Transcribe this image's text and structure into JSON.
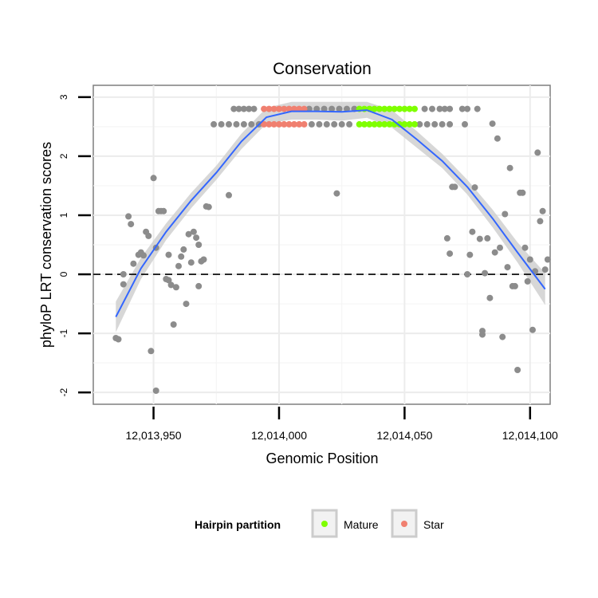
{
  "chart_data": {
    "type": "scatter",
    "title": "Conservation",
    "xlabel": "Genomic Position",
    "ylabel": "phyloP LRT conservation scores",
    "xlim": [
      12013926,
      12014108
    ],
    "ylim": [
      -2.2,
      3.2
    ],
    "x_ticks": [
      12013950,
      12014000,
      12014050,
      12014100
    ],
    "x_tick_labels": [
      "12,013,950",
      "12,014,000",
      "12,014,050",
      "12,014,100"
    ],
    "y_ticks": [
      -2,
      -1,
      0,
      1,
      2,
      3
    ],
    "y_tick_labels": [
      "-2",
      "-1",
      "0",
      "1",
      "2",
      "3"
    ],
    "reference_line": {
      "y": 0,
      "style": "dashed"
    },
    "legend": {
      "title": "Hairpin partition",
      "placement": "bottom",
      "items": [
        {
          "label": "Mature",
          "color": "#7fff00"
        },
        {
          "label": "Star",
          "color": "#f08070"
        }
      ]
    },
    "colors": {
      "other": "#8c8c8c",
      "Mature": "#7fff00",
      "Star": "#f08070",
      "smooth_line": "#3366ff",
      "confidence_band": "#d0d0d0"
    },
    "series": [
      {
        "name": "Other",
        "points": [
          [
            12013935,
            -1.08
          ],
          [
            12013936,
            -1.1
          ],
          [
            12013938,
            -0.17
          ],
          [
            12013938,
            0.0
          ],
          [
            12013940,
            0.98
          ],
          [
            12013941,
            0.85
          ],
          [
            12013942,
            0.18
          ],
          [
            12013944,
            0.33
          ],
          [
            12013945,
            0.37
          ],
          [
            12013946,
            0.32
          ],
          [
            12013947,
            0.72
          ],
          [
            12013948,
            0.65
          ],
          [
            12013949,
            -1.3
          ],
          [
            12013950,
            1.63
          ],
          [
            12013951,
            -1.97
          ],
          [
            12013951,
            0.45
          ],
          [
            12013952,
            1.07
          ],
          [
            12013953,
            1.07
          ],
          [
            12013954,
            1.07
          ],
          [
            12013955,
            -0.08
          ],
          [
            12013956,
            -0.1
          ],
          [
            12013956,
            0.33
          ],
          [
            12013957,
            -0.18
          ],
          [
            12013958,
            -0.85
          ],
          [
            12013959,
            -0.22
          ],
          [
            12013960,
            0.14
          ],
          [
            12013961,
            0.3
          ],
          [
            12013962,
            0.42
          ],
          [
            12013963,
            -0.5
          ],
          [
            12013964,
            0.68
          ],
          [
            12013965,
            0.2
          ],
          [
            12013966,
            0.72
          ],
          [
            12013967,
            0.62
          ],
          [
            12013968,
            0.5
          ],
          [
            12013968,
            -0.2
          ],
          [
            12013969,
            0.22
          ],
          [
            12013970,
            0.25
          ],
          [
            12013971,
            1.15
          ],
          [
            12013972,
            1.14
          ],
          [
            12013980,
            1.34
          ],
          [
            12014023,
            1.37
          ],
          [
            12014067,
            0.61
          ],
          [
            12014068,
            0.35
          ],
          [
            12014069,
            1.48
          ],
          [
            12014070,
            1.48
          ],
          [
            12014075,
            0.0
          ],
          [
            12014076,
            0.33
          ],
          [
            12014077,
            0.72
          ],
          [
            12014078,
            1.47
          ],
          [
            12014080,
            0.6
          ],
          [
            12014081,
            -0.96
          ],
          [
            12014081,
            -1.02
          ],
          [
            12014082,
            0.02
          ],
          [
            12014083,
            0.61
          ],
          [
            12014084,
            -0.4
          ],
          [
            12014085,
            2.55
          ],
          [
            12014086,
            0.37
          ],
          [
            12014087,
            2.3
          ],
          [
            12014088,
            0.45
          ],
          [
            12014089,
            -1.06
          ],
          [
            12014090,
            1.02
          ],
          [
            12014091,
            0.12
          ],
          [
            12014092,
            1.8
          ],
          [
            12014093,
            -0.2
          ],
          [
            12014094,
            -0.2
          ],
          [
            12014095,
            -1.62
          ],
          [
            12014096,
            1.38
          ],
          [
            12014097,
            1.38
          ],
          [
            12014098,
            0.45
          ],
          [
            12014099,
            -0.12
          ],
          [
            12014100,
            0.25
          ],
          [
            12014101,
            -0.94
          ],
          [
            12014102,
            0.05
          ],
          [
            12014103,
            2.06
          ],
          [
            12014104,
            0.9
          ],
          [
            12014105,
            1.07
          ],
          [
            12014106,
            0.08
          ],
          [
            12014107,
            0.25
          ],
          [
            12013982,
            2.8
          ],
          [
            12013984,
            2.8
          ],
          [
            12013986,
            2.8
          ],
          [
            12013988,
            2.8
          ],
          [
            12013990,
            2.8
          ],
          [
            12014012,
            2.8
          ],
          [
            12014015,
            2.8
          ],
          [
            12014018,
            2.8
          ],
          [
            12014021,
            2.8
          ],
          [
            12014024,
            2.8
          ],
          [
            12014027,
            2.8
          ],
          [
            12014030,
            2.8
          ],
          [
            12014058,
            2.8
          ],
          [
            12014061,
            2.8
          ],
          [
            12014064,
            2.8
          ],
          [
            12014066,
            2.8
          ],
          [
            12014068,
            2.8
          ],
          [
            12014073,
            2.8
          ],
          [
            12014075,
            2.8
          ],
          [
            12014079,
            2.8
          ],
          [
            12013974,
            2.54
          ],
          [
            12013977,
            2.54
          ],
          [
            12013980,
            2.54
          ],
          [
            12013983,
            2.54
          ],
          [
            12013986,
            2.54
          ],
          [
            12013989,
            2.54
          ],
          [
            12013992,
            2.54
          ],
          [
            12014013,
            2.54
          ],
          [
            12014016,
            2.54
          ],
          [
            12014019,
            2.54
          ],
          [
            12014022,
            2.54
          ],
          [
            12014025,
            2.54
          ],
          [
            12014028,
            2.54
          ],
          [
            12014056,
            2.54
          ],
          [
            12014059,
            2.54
          ],
          [
            12014062,
            2.54
          ],
          [
            12014065,
            2.54
          ],
          [
            12014068,
            2.54
          ],
          [
            12014074,
            2.54
          ]
        ]
      },
      {
        "name": "Star",
        "points": [
          [
            12013994,
            2.8
          ],
          [
            12013996,
            2.8
          ],
          [
            12013998,
            2.8
          ],
          [
            12014000,
            2.8
          ],
          [
            12014002,
            2.8
          ],
          [
            12014004,
            2.8
          ],
          [
            12014006,
            2.8
          ],
          [
            12014008,
            2.8
          ],
          [
            12014010,
            2.8
          ],
          [
            12013994,
            2.54
          ],
          [
            12013996,
            2.54
          ],
          [
            12013998,
            2.54
          ],
          [
            12014000,
            2.54
          ],
          [
            12014002,
            2.54
          ],
          [
            12014004,
            2.54
          ],
          [
            12014006,
            2.54
          ],
          [
            12014008,
            2.54
          ],
          [
            12014010,
            2.54
          ]
        ]
      },
      {
        "name": "Mature",
        "points": [
          [
            12014032,
            2.8
          ],
          [
            12014034,
            2.8
          ],
          [
            12014036,
            2.8
          ],
          [
            12014038,
            2.8
          ],
          [
            12014040,
            2.8
          ],
          [
            12014042,
            2.8
          ],
          [
            12014044,
            2.8
          ],
          [
            12014046,
            2.8
          ],
          [
            12014048,
            2.8
          ],
          [
            12014050,
            2.8
          ],
          [
            12014052,
            2.8
          ],
          [
            12014054,
            2.8
          ],
          [
            12014032,
            2.54
          ],
          [
            12014034,
            2.54
          ],
          [
            12014036,
            2.54
          ],
          [
            12014038,
            2.54
          ],
          [
            12014040,
            2.54
          ],
          [
            12014042,
            2.54
          ],
          [
            12014044,
            2.54
          ],
          [
            12014046,
            2.54
          ],
          [
            12014048,
            2.54
          ],
          [
            12014050,
            2.54
          ],
          [
            12014052,
            2.54
          ],
          [
            12014054,
            2.54
          ]
        ]
      }
    ],
    "smooth": {
      "x": [
        12013935,
        12013945,
        12013955,
        12013965,
        12013975,
        12013985,
        12013995,
        12014005,
        12014015,
        12014025,
        12014035,
        12014045,
        12014055,
        12014065,
        12014075,
        12014085,
        12014095,
        12014106
      ],
      "y": [
        -0.72,
        0.1,
        0.72,
        1.25,
        1.72,
        2.25,
        2.66,
        2.76,
        2.76,
        2.75,
        2.78,
        2.62,
        2.28,
        1.92,
        1.48,
        0.95,
        0.37,
        -0.25
      ],
      "lower": [
        -0.98,
        -0.08,
        0.58,
        1.12,
        1.6,
        2.12,
        2.55,
        2.62,
        2.62,
        2.6,
        2.65,
        2.48,
        2.14,
        1.8,
        1.35,
        0.8,
        0.2,
        -0.52
      ],
      "upper": [
        -0.46,
        0.28,
        0.86,
        1.38,
        1.84,
        2.38,
        2.82,
        2.92,
        2.92,
        2.92,
        2.92,
        2.78,
        2.42,
        2.04,
        1.6,
        1.1,
        0.54,
        0.02
      ]
    }
  }
}
